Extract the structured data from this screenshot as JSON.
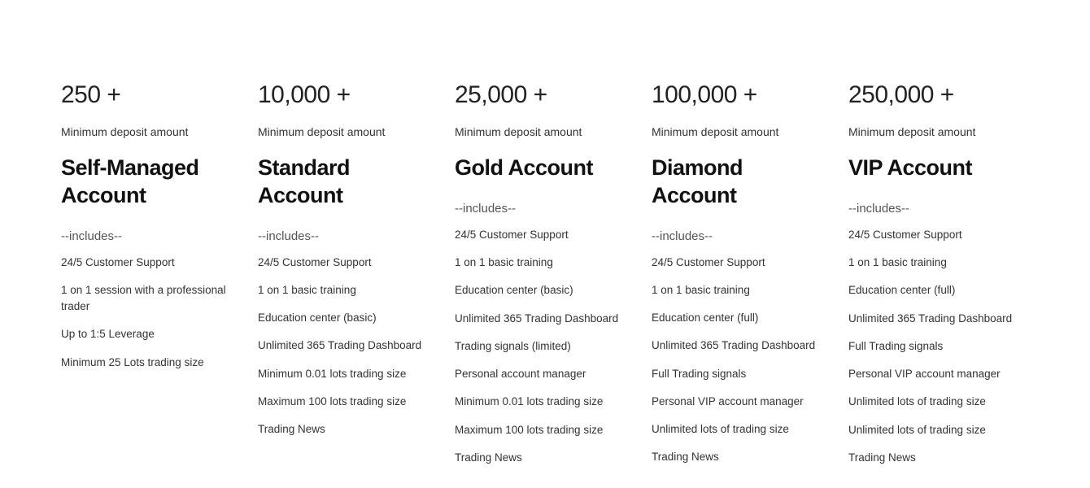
{
  "subtitle": "Minimum deposit amount",
  "includes_label": "--includes--",
  "plans": [
    {
      "price": "250 +",
      "name": "Self-Managed Account",
      "features": [
        "24/5 Customer Support",
        "1 on 1 session with a professional trader",
        "Up to 1:5 Leverage",
        "Minimum 25 Lots trading size"
      ]
    },
    {
      "price": "10,000 +",
      "name": "Standard Account",
      "features": [
        "24/5 Customer Support",
        "1 on 1 basic training",
        "Education center (basic)",
        "Unlimited 365 Trading Dashboard",
        "Minimum 0.01 lots trading size",
        "Maximum 100 lots trading size",
        "Trading News"
      ]
    },
    {
      "price": "25,000 +",
      "name": "Gold Account",
      "features": [
        "24/5 Customer Support",
        "1 on 1 basic training",
        "Education center (basic)",
        "Unlimited 365 Trading Dashboard",
        "Trading signals (limited)",
        "Personal account manager",
        "Minimum 0.01 lots trading size",
        "Maximum 100 lots trading size",
        "Trading News"
      ]
    },
    {
      "price": "100,000 +",
      "name": "Diamond Account",
      "features": [
        "24/5 Customer Support",
        "1 on 1 basic training",
        "Education center (full)",
        "Unlimited 365 Trading Dashboard",
        "Full Trading signals",
        "Personal VIP account manager",
        "Unlimited lots of trading size",
        "Trading News"
      ]
    },
    {
      "price": "250,000 +",
      "name": "VIP Account",
      "features": [
        "24/5 Customer Support",
        "1 on 1 basic training",
        "Education center (full)",
        "Unlimited 365 Trading Dashboard",
        "Full Trading signals",
        "Personal VIP account manager",
        "Unlimited lots of trading size",
        "Unlimited lots of trading size",
        "Trading News"
      ]
    }
  ]
}
